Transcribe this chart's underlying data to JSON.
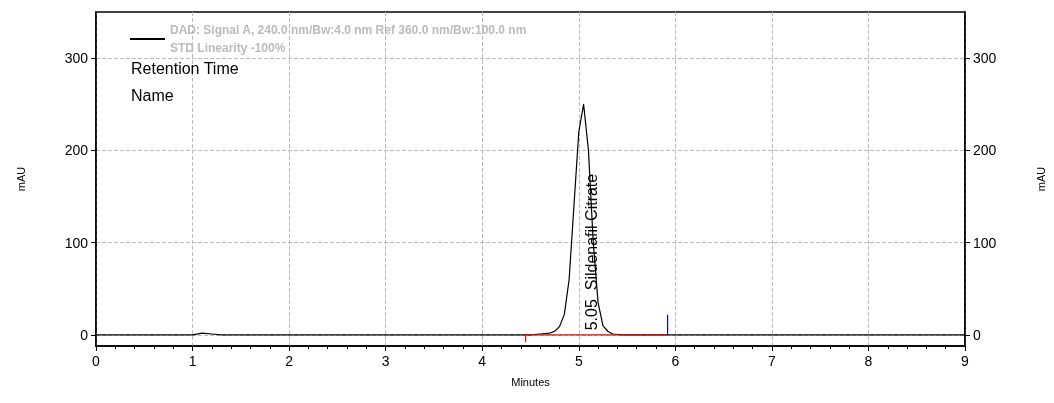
{
  "chart_data": {
    "type": "line",
    "xlabel": "Minutes",
    "ylabel": "mAU",
    "y2label": "mAU",
    "xlim": [
      0,
      9
    ],
    "xticks": [
      0,
      1,
      2,
      3,
      4,
      5,
      6,
      7,
      8,
      9
    ],
    "ylim": [
      -12,
      350
    ],
    "yticks": [
      0,
      100,
      200,
      300
    ],
    "y2lim": [
      -12,
      350
    ],
    "y2ticks": [
      0,
      100,
      200,
      300
    ],
    "grid": true,
    "legend": "top left",
    "marker": "none",
    "series": [
      {
        "name": "DAD: Signal A, 240.0 nm/Bw:4.0 nm Ref 360.0 nm/Bw:100.0 nm\nSTD Linearity -100%",
        "color": "#000000",
        "x": [
          0,
          0.5,
          1.0,
          1.1,
          1.2,
          1.3,
          2,
          3,
          4,
          4.5,
          4.6,
          4.7,
          4.75,
          4.8,
          4.85,
          4.9,
          4.95,
          5.0,
          5.05,
          5.1,
          5.15,
          5.2,
          5.25,
          5.3,
          5.35,
          5.45,
          5.6,
          6,
          7,
          8,
          9
        ],
        "values": [
          0,
          0,
          0,
          2,
          1,
          0,
          0,
          0,
          0,
          0,
          1,
          2,
          4,
          9,
          22,
          60,
          140,
          220,
          250,
          200,
          100,
          35,
          10,
          4,
          1,
          0,
          0,
          0,
          0,
          0,
          0
        ]
      },
      {
        "color": "#ff0000",
        "x": [
          4.45,
          4.45,
          5.92
        ],
        "values": [
          -8,
          0,
          0
        ]
      },
      {
        "color": "#0000ff",
        "x": [
          5.92,
          5.92
        ],
        "values": [
          0,
          22
        ]
      }
    ],
    "annotations": [
      "Retention Time",
      "Name",
      {
        "text": "5.05  Sildenafil Citrate",
        "x": 5.05,
        "y": 5
      }
    ]
  }
}
